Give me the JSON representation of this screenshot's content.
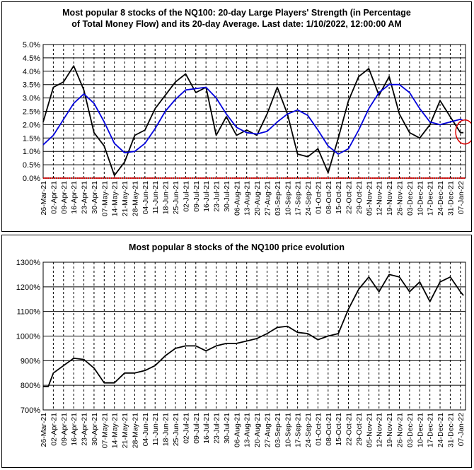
{
  "chart_data": [
    {
      "type": "line",
      "title_line1": "Most popular 8 stocks of the NQ100: 20-day Large Players' Strength (in Percentage",
      "title_line2": "of Total Money Flow) and its 20-day Average. Last date: 1/10/2022, 12:00:00 AM",
      "y_ticks": [
        "0.0%",
        "0.5%",
        "1.0%",
        "1.5%",
        "2.0%",
        "2.5%",
        "3.0%",
        "3.5%",
        "4.0%",
        "4.5%",
        "5.0%"
      ],
      "ylim": [
        0,
        5
      ],
      "grid": true,
      "x_ticks": [
        "26-Mar-21",
        "02-Apr-21",
        "09-Apr-21",
        "16-Apr-21",
        "23-Apr-21",
        "30-Apr-21",
        "07-May-21",
        "14-May-21",
        "21-May-21",
        "28-May-21",
        "04-Jun-21",
        "11-Jun-21",
        "18-Jun-21",
        "25-Jun-21",
        "02-Jul-21",
        "09-Jul-21",
        "16-Jul-21",
        "23-Jul-21",
        "30-Jul-21",
        "06-Aug-21",
        "13-Aug-21",
        "20-Aug-21",
        "27-Aug-21",
        "03-Sep-21",
        "10-Sep-21",
        "17-Sep-21",
        "24-Sep-21",
        "01-Oct-21",
        "08-Oct-21",
        "15-Oct-21",
        "22-Oct-21",
        "29-Oct-21",
        "05-Nov-21",
        "12-Nov-21",
        "19-Nov-21",
        "26-Nov-21",
        "03-Dec-21",
        "10-Dec-21",
        "17-Dec-21",
        "24-Dec-21",
        "31-Dec-21",
        "07-Jan-22"
      ],
      "series": [
        {
          "color": "#000000",
          "x": [
            0,
            1,
            2,
            3,
            4,
            5,
            6,
            7,
            8,
            9,
            10,
            11,
            12,
            13,
            14,
            15,
            16,
            17,
            18,
            19,
            20,
            21,
            22,
            23,
            24,
            25,
            26,
            27,
            28,
            29,
            30,
            31,
            32,
            33,
            34,
            35,
            36,
            37,
            38,
            39,
            40,
            41,
            41.3
          ],
          "values": [
            2.1,
            3.4,
            3.6,
            4.2,
            3.3,
            1.7,
            1.2,
            0.1,
            0.6,
            1.6,
            1.8,
            2.6,
            3.1,
            3.6,
            3.9,
            3.2,
            3.4,
            1.6,
            2.3,
            1.6,
            1.8,
            1.6,
            2.4,
            3.4,
            2.4,
            0.9,
            0.8,
            1.1,
            0.2,
            1.5,
            2.9,
            3.8,
            4.1,
            3.1,
            3.8,
            2.4,
            1.7,
            1.5,
            2.0,
            2.9,
            2.3,
            1.7,
            1.7
          ]
        },
        {
          "color": "#0000dd",
          "x": [
            0,
            1,
            2,
            3,
            4,
            5,
            6,
            7,
            8,
            9,
            10,
            11,
            12,
            13,
            14,
            15,
            16,
            17,
            18,
            19,
            20,
            21,
            22,
            23,
            24,
            25,
            26,
            27,
            28,
            29,
            30,
            31,
            32,
            33,
            34,
            35,
            36,
            37,
            38,
            39,
            40,
            41,
            41.3
          ],
          "values": [
            1.25,
            1.6,
            2.2,
            2.8,
            3.15,
            2.8,
            2.1,
            1.3,
            0.95,
            1.0,
            1.3,
            1.85,
            2.5,
            2.95,
            3.3,
            3.35,
            3.4,
            3.0,
            2.4,
            1.9,
            1.7,
            1.65,
            1.75,
            2.1,
            2.4,
            2.55,
            2.35,
            1.8,
            1.2,
            0.9,
            1.1,
            1.8,
            2.6,
            3.2,
            3.5,
            3.5,
            3.2,
            2.6,
            2.1,
            2.0,
            2.1,
            2.2,
            2.15
          ]
        }
      ],
      "reference_line": {
        "value": 0,
        "color": "#dd0000"
      },
      "highlight_color": "#dd0000"
    },
    {
      "type": "line",
      "title": "Most popular 8 stocks of the NQ100 price evolution",
      "y_ticks": [
        "700%",
        "800%",
        "900%",
        "1000%",
        "1100%",
        "1200%",
        "1300%"
      ],
      "ylim": [
        700,
        1300
      ],
      "grid": true,
      "x_ticks": [
        "26-Mar-21",
        "02-Apr-21",
        "09-Apr-21",
        "16-Apr-21",
        "23-Apr-21",
        "30-Apr-21",
        "07-May-21",
        "14-May-21",
        "21-May-21",
        "28-May-21",
        "04-Jun-21",
        "11-Jun-21",
        "18-Jun-21",
        "25-Jun-21",
        "02-Jul-21",
        "09-Jul-21",
        "16-Jul-21",
        "23-Jul-21",
        "30-Jul-21",
        "06-Aug-21",
        "13-Aug-21",
        "20-Aug-21",
        "27-Aug-21",
        "03-Sep-21",
        "10-Sep-21",
        "17-Sep-21",
        "24-Sep-21",
        "01-Oct-21",
        "08-Oct-21",
        "15-Oct-21",
        "22-Oct-21",
        "29-Oct-21",
        "05-Nov-21",
        "12-Nov-21",
        "19-Nov-21",
        "26-Nov-21",
        "03-Dec-21",
        "10-Dec-21",
        "17-Dec-21",
        "24-Dec-21",
        "31-Dec-21",
        "07-Jan-22"
      ],
      "series": [
        {
          "color": "#000000",
          "x": [
            0,
            0.5,
            1,
            2,
            3,
            4,
            5,
            6,
            7,
            8,
            9,
            10,
            11,
            12,
            13,
            14,
            15,
            16,
            17,
            18,
            19,
            20,
            21,
            22,
            23,
            24,
            25,
            26,
            27,
            28,
            29,
            30,
            31,
            32,
            33,
            34,
            35,
            36,
            37,
            38,
            39,
            40,
            41,
            41.3
          ],
          "values": [
            795,
            795,
            850,
            880,
            910,
            905,
            870,
            810,
            810,
            850,
            850,
            860,
            880,
            920,
            950,
            960,
            960,
            940,
            960,
            970,
            970,
            980,
            990,
            1010,
            1035,
            1040,
            1015,
            1010,
            985,
            1000,
            1010,
            1110,
            1190,
            1240,
            1180,
            1250,
            1240,
            1180,
            1220,
            1140,
            1220,
            1240,
            1180,
            1165
          ]
        }
      ]
    }
  ]
}
